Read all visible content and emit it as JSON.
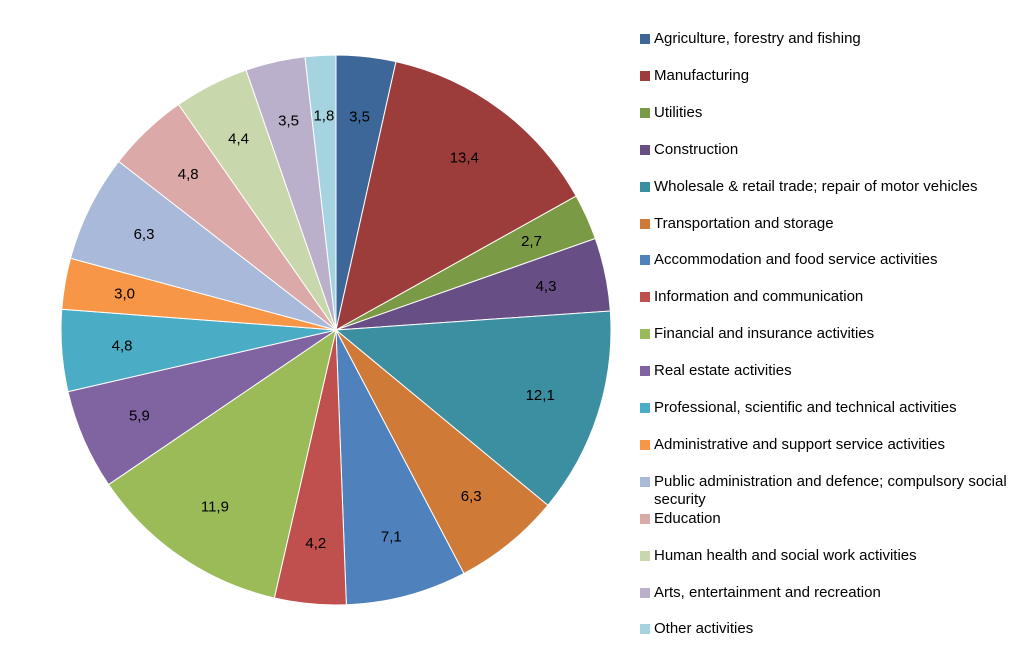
{
  "chart_data": {
    "type": "pie",
    "title": "",
    "start_angle_deg": 0,
    "direction": "clockwise",
    "legend_position": "right",
    "series": [
      {
        "name": "",
        "slices": [
          {
            "label": "Agriculture, forestry and fishing",
            "value": 3.5,
            "value_label": "3,5",
            "color": "#3D6699"
          },
          {
            "label": "Manufacturing",
            "value": 13.4,
            "value_label": "13,4",
            "color": "#9C3D3B"
          },
          {
            "label": "Utilities",
            "value": 2.7,
            "value_label": "2,7",
            "color": "#7A9A45"
          },
          {
            "label": "Construction",
            "value": 4.3,
            "value_label": "4,3",
            "color": "#674F85"
          },
          {
            "label": "Wholesale & retail trade; repair of motor vehicles",
            "value": 12.1,
            "value_label": "12,1",
            "color": "#3C8EA1"
          },
          {
            "label": "Transportation and storage",
            "value": 6.3,
            "value_label": "6,3",
            "color": "#D07A38"
          },
          {
            "label": "Accommodation and food service activities",
            "value": 7.1,
            "value_label": "7,1",
            "color": "#4F81BD"
          },
          {
            "label": "Information and communication",
            "value": 4.2,
            "value_label": "4,2",
            "color": "#C0504D"
          },
          {
            "label": "Financial and insurance activities",
            "value": 11.9,
            "value_label": "11,9",
            "color": "#9BBB59"
          },
          {
            "label": "Real estate activities",
            "value": 5.9,
            "value_label": "5,9",
            "color": "#8064A2"
          },
          {
            "label": "Professional, scientific and technical activities",
            "value": 4.8,
            "value_label": "4,8",
            "color": "#4BACC6"
          },
          {
            "label": "Administrative and support service activities",
            "value": 3.0,
            "value_label": "3,0",
            "color": "#F79646"
          },
          {
            "label": "Public administration and defence; compulsory social security",
            "value": 6.3,
            "value_label": "6,3",
            "color": "#A9B9DA"
          },
          {
            "label": "Education",
            "value": 4.8,
            "value_label": "4,8",
            "color": "#DBA9A8"
          },
          {
            "label": "Human health and social work activities",
            "value": 4.4,
            "value_label": "4,4",
            "color": "#C9D8AC"
          },
          {
            "label": "Arts, entertainment and recreation",
            "value": 3.5,
            "value_label": "3,5",
            "color": "#BAB0CC"
          },
          {
            "label": "Other activities",
            "value": 1.8,
            "value_label": "1,8",
            "color": "#A6D3E0"
          }
        ]
      }
    ]
  }
}
